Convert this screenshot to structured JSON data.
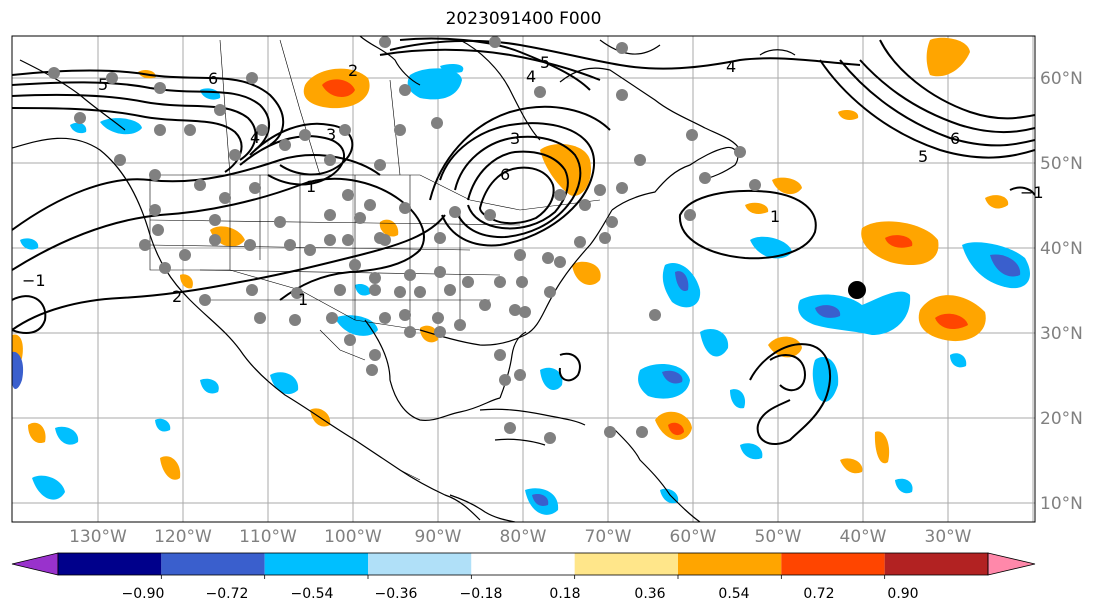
{
  "title": "2023091400 F000",
  "longitude_labels": [
    "130°W",
    "120°W",
    "110°W",
    "100°W",
    "90°W",
    "80°W",
    "70°W",
    "60°W",
    "50°W",
    "40°W",
    "30°W"
  ],
  "latitude_labels": [
    "60°N",
    "50°N",
    "40°N",
    "30°N",
    "20°N",
    "10°N"
  ],
  "colorbar": {
    "colors": [
      "#9932cc",
      "#00008b",
      "#3a5fcd",
      "#00bfff",
      "#b0e0f8",
      "#ffffff",
      "#ffe68a",
      "#ffa500",
      "#ff4500",
      "#b22222",
      "#ff88aa"
    ],
    "tick_labels": [
      "−0.90",
      "−0.72",
      "−0.54",
      "−0.36",
      "−0.18",
      "0.18",
      "0.36",
      "0.54",
      "0.72",
      "0.90"
    ]
  },
  "contour_labels": [
    "6",
    "5",
    "4",
    "3",
    "2",
    "1",
    "−1",
    "6",
    "5",
    "4",
    "3",
    "2",
    "1",
    "4",
    "5",
    "6",
    "1",
    "−1"
  ],
  "marker_color": "#808080",
  "big_marker_color": "#000000"
}
